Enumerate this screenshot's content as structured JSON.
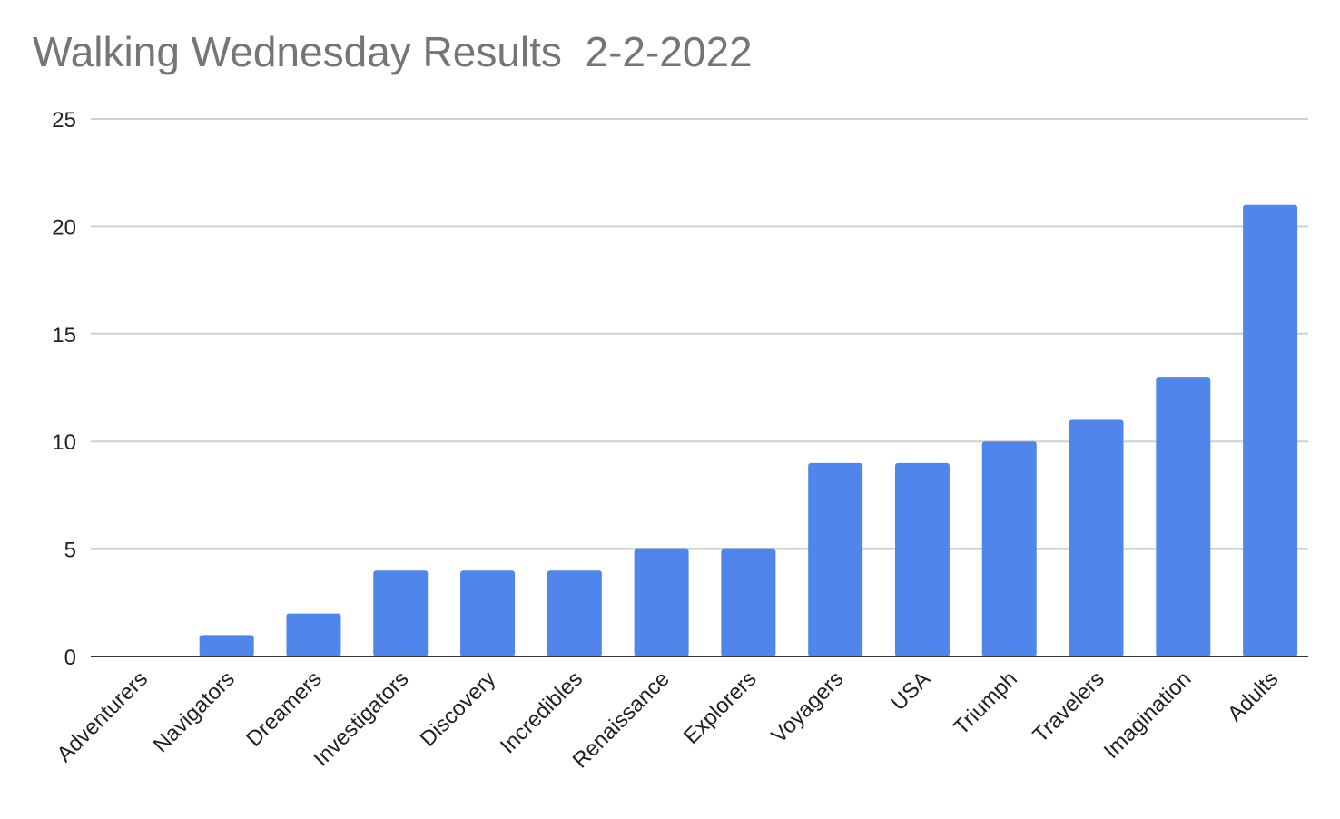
{
  "chart_data": {
    "type": "bar",
    "title": "Walking Wednesday Results  2-2-2022",
    "xlabel": "",
    "ylabel": "",
    "categories": [
      "Adventurers",
      "Navigators",
      "Dreamers",
      "Investigators",
      "Discovery",
      "Incredibles",
      "Renaissance",
      "Explorers",
      "Voyagers",
      "USA",
      "Triumph",
      "Travelers",
      "Imagination",
      "Adults"
    ],
    "values": [
      0,
      1,
      2,
      4,
      4,
      4,
      5,
      5,
      9,
      9,
      10,
      11,
      13,
      21
    ],
    "ylim": [
      0,
      25
    ],
    "yticks": [
      "0",
      "5",
      "10",
      "15",
      "20",
      "25"
    ],
    "grid": true,
    "legend": "none",
    "colors": {
      "bar": "#5086ec",
      "grid": "#d0d0d0",
      "baseline": "#333333",
      "title": "#757575"
    }
  }
}
